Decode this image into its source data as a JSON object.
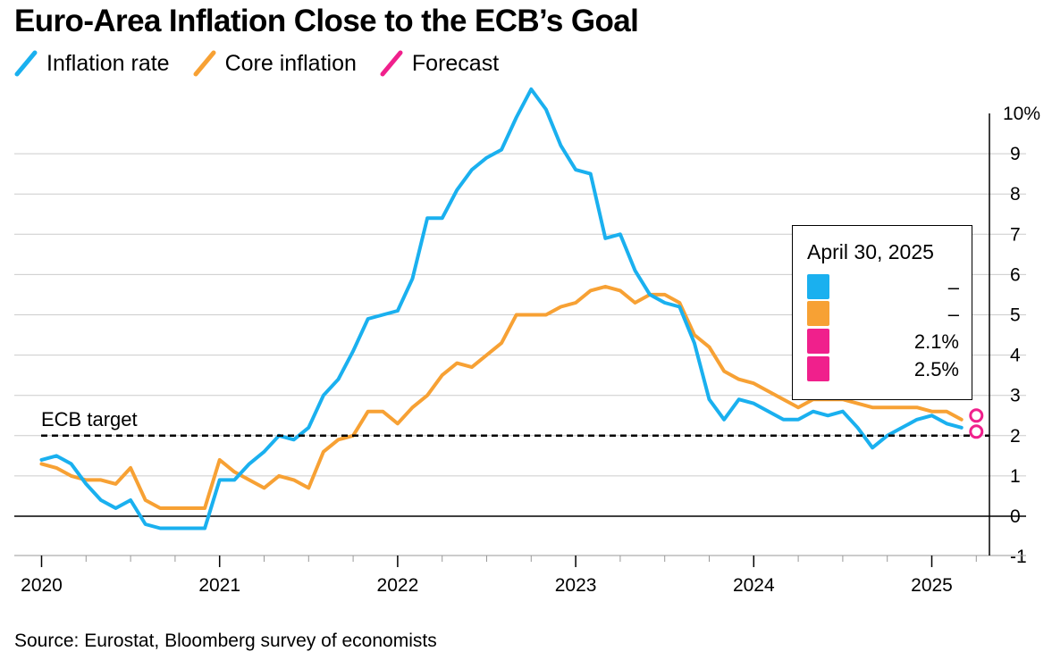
{
  "title": "Euro-Area Inflation Close to the ECB’s Goal",
  "source": "Source: Eurostat, Bloomberg survey of economists",
  "colors": {
    "inflation": "#1ab0ef",
    "core": "#f7a134",
    "forecast": "#f0208c"
  },
  "legend": [
    {
      "label": "Inflation rate",
      "color": "#1ab0ef"
    },
    {
      "label": "Core inflation",
      "color": "#f7a134"
    },
    {
      "label": "Forecast",
      "color": "#f0208c"
    }
  ],
  "tooltip": {
    "date": "April 30, 2025",
    "rows": [
      {
        "color": "#1ab0ef",
        "value": "–"
      },
      {
        "color": "#f7a134",
        "value": "–"
      },
      {
        "color": "#f0208c",
        "value": "2.1%"
      },
      {
        "color": "#f0208c",
        "value": "2.5%"
      }
    ]
  },
  "chart_data": {
    "type": "line",
    "title": "Euro-Area Inflation Close to the ECB’s Goal",
    "x_start": "2020-01",
    "x_ticks": [
      "2020",
      "2021",
      "2022",
      "2023",
      "2024",
      "2025"
    ],
    "y_ticks": [
      "10%",
      "9",
      "8",
      "7",
      "6",
      "5",
      "4",
      "3",
      "2",
      "1",
      "0",
      "-1"
    ],
    "ylim": [
      -1,
      10
    ],
    "grid": true,
    "reference_line": {
      "label": "ECB target",
      "value": 2
    },
    "series": [
      {
        "name": "Inflation rate",
        "color": "#1ab0ef",
        "values": [
          1.4,
          1.5,
          1.3,
          0.8,
          0.4,
          0.2,
          0.4,
          -0.2,
          -0.3,
          -0.3,
          -0.3,
          -0.3,
          0.9,
          0.9,
          1.3,
          1.6,
          2.0,
          1.9,
          2.2,
          3.0,
          3.4,
          4.1,
          4.9,
          5.0,
          5.1,
          5.9,
          7.4,
          7.4,
          8.1,
          8.6,
          8.9,
          9.1,
          9.9,
          10.6,
          10.1,
          9.2,
          8.6,
          8.5,
          6.9,
          7.0,
          6.1,
          5.5,
          5.3,
          5.2,
          4.3,
          2.9,
          2.4,
          2.9,
          2.8,
          2.6,
          2.4,
          2.4,
          2.6,
          2.5,
          2.6,
          2.2,
          1.7,
          2.0,
          2.2,
          2.4,
          2.5,
          2.3,
          2.2
        ]
      },
      {
        "name": "Core inflation",
        "color": "#f7a134",
        "values": [
          1.3,
          1.2,
          1.0,
          0.9,
          0.9,
          0.8,
          1.2,
          0.4,
          0.2,
          0.2,
          0.2,
          0.2,
          1.4,
          1.1,
          0.9,
          0.7,
          1.0,
          0.9,
          0.7,
          1.6,
          1.9,
          2.0,
          2.6,
          2.6,
          2.3,
          2.7,
          3.0,
          3.5,
          3.8,
          3.7,
          4.0,
          4.3,
          5.0,
          5.0,
          5.0,
          5.2,
          5.3,
          5.6,
          5.7,
          5.6,
          5.3,
          5.5,
          5.5,
          5.3,
          4.5,
          4.2,
          3.6,
          3.4,
          3.3,
          3.1,
          2.9,
          2.7,
          2.9,
          2.9,
          2.9,
          2.8,
          2.7,
          2.7,
          2.7,
          2.7,
          2.6,
          2.6,
          2.4
        ]
      },
      {
        "name": "Forecast",
        "color": "#f0208c",
        "points": [
          {
            "x": "2025-04",
            "y": 2.1
          },
          {
            "x": "2025-04",
            "y": 2.5
          }
        ]
      }
    ]
  }
}
